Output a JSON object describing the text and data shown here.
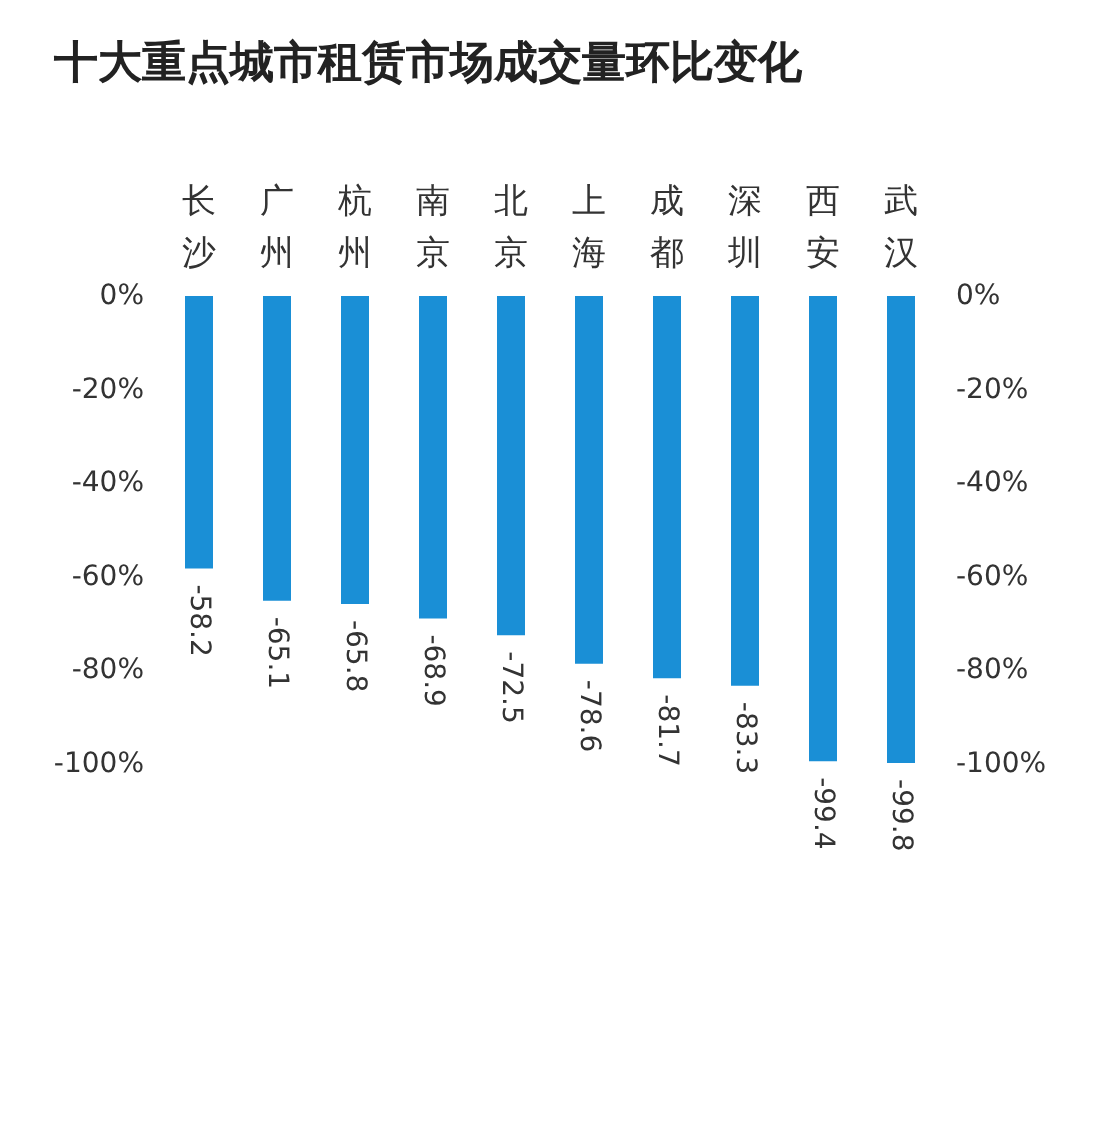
{
  "chart_data": {
    "type": "bar",
    "title": "十大重点城市租赁市场成交量环比变化",
    "categories": [
      "长沙",
      "广州",
      "杭州",
      "南京",
      "北京",
      "上海",
      "成都",
      "深圳",
      "西安",
      "武汉"
    ],
    "values": [
      -58.2,
      -65.1,
      -65.8,
      -68.9,
      -72.5,
      -78.6,
      -81.7,
      -83.3,
      -99.4,
      -99.8
    ],
    "color": "#1a8fd6",
    "data_labels": true,
    "ylim": [
      -100,
      0
    ],
    "yticks": [
      {
        "value": 0,
        "label": "0%"
      },
      {
        "value": -20,
        "label": "-20%"
      },
      {
        "value": -40,
        "label": "-40%"
      },
      {
        "value": -60,
        "label": "-60%"
      },
      {
        "value": -80,
        "label": "-80%"
      },
      {
        "value": -100,
        "label": "-100%"
      }
    ],
    "y2lim": [
      -100,
      0
    ],
    "y2ticks": [
      {
        "value": 0,
        "label": "0%"
      },
      {
        "value": -20,
        "label": "-20%"
      },
      {
        "value": -40,
        "label": "-40%"
      },
      {
        "value": -60,
        "label": "-60%"
      },
      {
        "value": -80,
        "label": "-80%"
      },
      {
        "value": -100,
        "label": "-100%"
      }
    ]
  }
}
